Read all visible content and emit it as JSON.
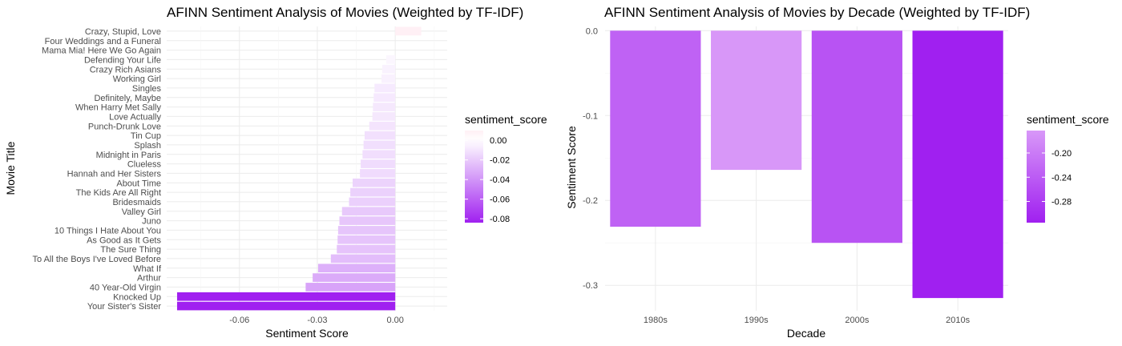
{
  "chart_data": [
    {
      "type": "bar",
      "orientation": "horizontal",
      "title": "AFINN Sentiment Analysis of Movies (Weighted by TF-IDF)",
      "xlabel": "Sentiment Score",
      "ylabel": "Movie Title",
      "xlim": [
        -0.088,
        0.02
      ],
      "x_ticks": [
        -0.06,
        -0.03,
        0.0
      ],
      "x_tick_labels": [
        "-0.06",
        "-0.03",
        "0.00"
      ],
      "grid": true,
      "legend_title": "sentiment_score",
      "legend_position": "right",
      "legend_labels": [
        "0.00",
        "-0.02",
        "-0.04",
        "-0.06",
        "-0.08"
      ],
      "legend_values": [
        0.0,
        -0.02,
        -0.04,
        -0.06,
        -0.08
      ],
      "color_range": [
        -0.084,
        0.01
      ],
      "colors": {
        "low": "#a020f0",
        "mid": "#ffffff",
        "high": "#fff0f5"
      },
      "categories": [
        "Crazy, Stupid, Love",
        "Four Weddings and a Funeral",
        "Mama Mia! Here We Go Again",
        "Defending Your Life",
        "Crazy Rich Asians",
        "Working Girl",
        "Singles",
        "Definitely, Maybe",
        "When Harry Met Sally",
        "Love Actually",
        "Punch-Drunk Love",
        "Tin Cup",
        "Splash",
        "Midnight in Paris",
        "Clueless",
        "Hannah and Her Sisters",
        "About Time",
        "The Kids Are All Right",
        "Bridesmaids",
        "Valley Girl",
        "Juno",
        "10 Things I Hate About You",
        "As Good as It Gets",
        "The Sure Thing",
        "To All the Boys I've Loved Before",
        "What If",
        "Arthur",
        "40 Year-Old Virgin",
        "Knocked Up",
        "Your Sister's Sister"
      ],
      "values": [
        0.01,
        0.0,
        0.0,
        -0.0035,
        -0.005,
        -0.0053,
        -0.008,
        -0.0083,
        -0.0086,
        -0.0088,
        -0.01,
        -0.0118,
        -0.0122,
        -0.0126,
        -0.0133,
        -0.0136,
        -0.0164,
        -0.0173,
        -0.0178,
        -0.0205,
        -0.0215,
        -0.022,
        -0.0222,
        -0.0225,
        -0.0248,
        -0.0297,
        -0.0318,
        -0.0345,
        -0.084,
        -0.084
      ]
    },
    {
      "type": "bar",
      "title": "AFINN Sentiment Analysis of Movies by Decade (Weighted by TF-IDF)",
      "xlabel": "Decade",
      "ylabel": "Sentiment Score",
      "ylim": [
        -0.33,
        0.005
      ],
      "y_ticks": [
        0.0,
        -0.1,
        -0.2,
        -0.3
      ],
      "y_tick_labels": [
        "0.0",
        "-0.1",
        "-0.2",
        "-0.3"
      ],
      "grid": true,
      "legend_title": "sentiment_score",
      "legend_position": "right",
      "legend_labels": [
        "-0.20",
        "-0.24",
        "-0.28"
      ],
      "legend_values": [
        -0.2,
        -0.24,
        -0.28
      ],
      "color_range": [
        -0.315,
        -0.163
      ],
      "colors": {
        "low": "#a020f0",
        "high": "#d898f8"
      },
      "categories": [
        "1980s",
        "1990s",
        "2000s",
        "2010s"
      ],
      "values": [
        -0.231,
        -0.164,
        -0.25,
        -0.315
      ]
    }
  ]
}
